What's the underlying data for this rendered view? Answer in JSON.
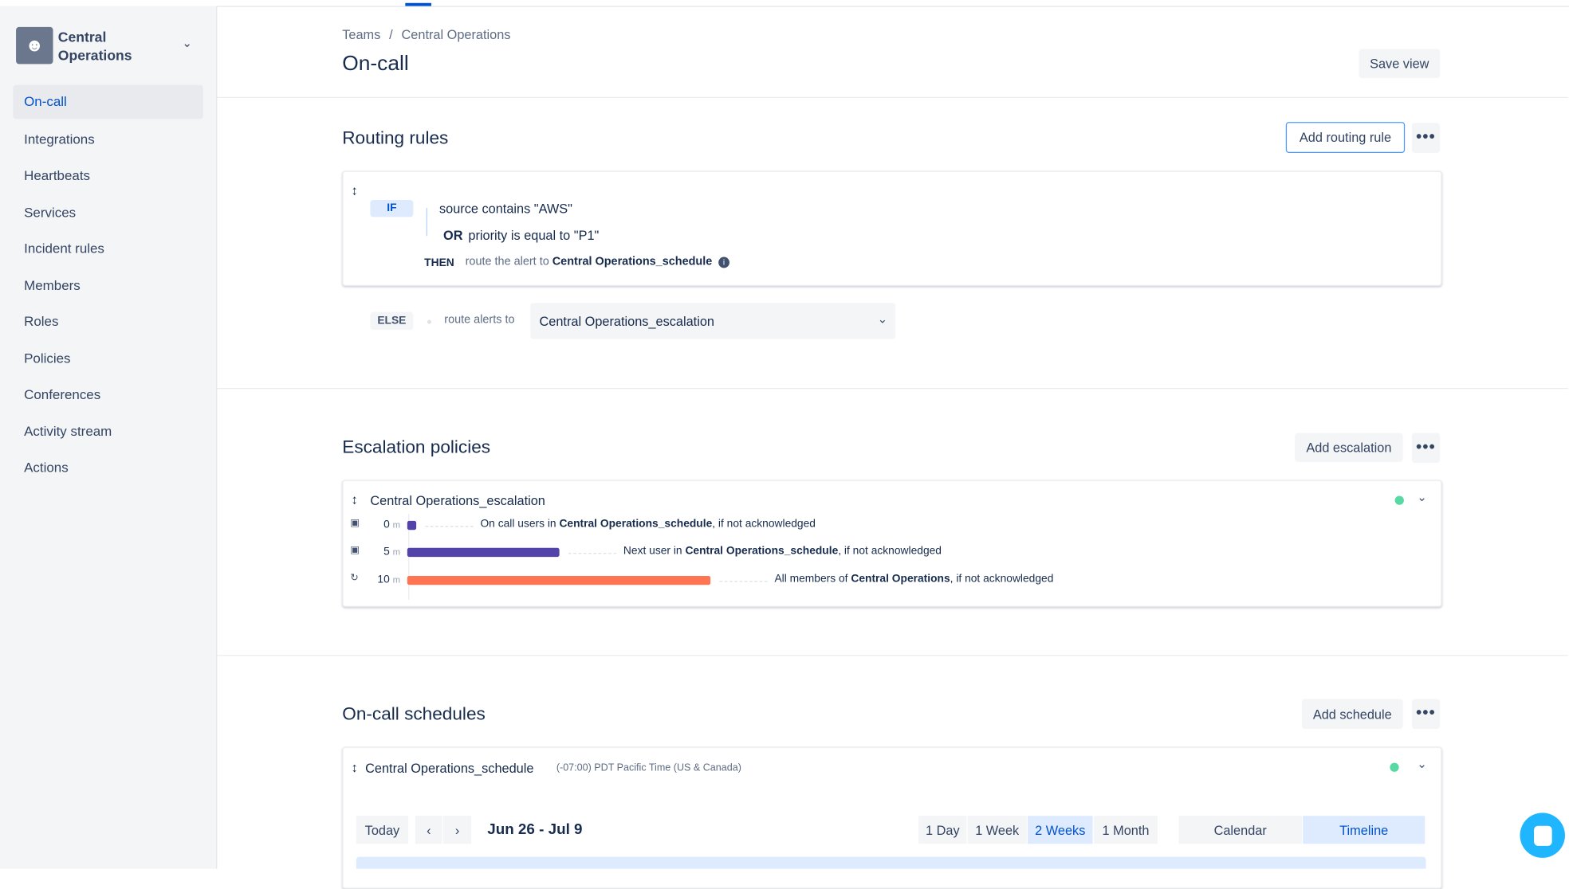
{
  "team": {
    "name": "Central Operations",
    "icon": "people-icon"
  },
  "sidebar": {
    "items": [
      {
        "label": "On-call",
        "active": true
      },
      {
        "label": "Integrations"
      },
      {
        "label": "Heartbeats"
      },
      {
        "label": "Services"
      },
      {
        "label": "Incident rules"
      },
      {
        "label": "Members"
      },
      {
        "label": "Roles"
      },
      {
        "label": "Policies"
      },
      {
        "label": "Conferences"
      },
      {
        "label": "Activity stream"
      },
      {
        "label": "Actions"
      }
    ]
  },
  "header": {
    "breadcrumb": [
      "Teams",
      "Central Operations"
    ],
    "breadcrumb_sep": "/",
    "title": "On-call",
    "save_view": "Save view"
  },
  "routing": {
    "title": "Routing rules",
    "add_label": "Add routing rule",
    "rule": {
      "if_label": "IF",
      "condition1": "source contains \"AWS\"",
      "or_label": "OR",
      "condition2": "priority is equal to \"P1\"",
      "then_label": "THEN",
      "then_text": "route the alert to",
      "then_target": "Central Operations_schedule"
    },
    "else": {
      "label": "ELSE",
      "text": "route alerts to",
      "selected": "Central Operations_escalation"
    }
  },
  "escalation": {
    "title": "Escalation policies",
    "add_label": "Add escalation",
    "policy_name": "Central Operations_escalation",
    "status_color": "#57d9a3",
    "steps": [
      {
        "time": "0",
        "unit": "m",
        "icon": "schedule-icon",
        "pre": "On call users in",
        "target": "Central Operations_schedule",
        "post": ", if not acknowledged",
        "color": "#5243aa"
      },
      {
        "time": "5",
        "unit": "m",
        "icon": "schedule-icon",
        "pre": "Next user in",
        "target": "Central Operations_schedule",
        "post": ", if not acknowledged",
        "color": "#5243aa"
      },
      {
        "time": "10",
        "unit": "m",
        "icon": "team-icon",
        "pre": "All members of",
        "target": "Central Operations",
        "post": ", if not acknowledged",
        "color": "#ff7452"
      }
    ]
  },
  "schedules": {
    "title": "On-call schedules",
    "add_label": "Add schedule",
    "schedule_name": "Central Operations_schedule",
    "timezone": "(-07:00) PDT Pacific Time (US & Canada)",
    "today": "Today",
    "range": "Jun 26 - Jul 9",
    "ranges": [
      "1 Day",
      "1 Week",
      "2 Weeks",
      "1 Month"
    ],
    "selected_range": "2 Weeks",
    "views": [
      "Calendar",
      "Timeline"
    ],
    "selected_view": "Timeline"
  },
  "more_label": "•••"
}
